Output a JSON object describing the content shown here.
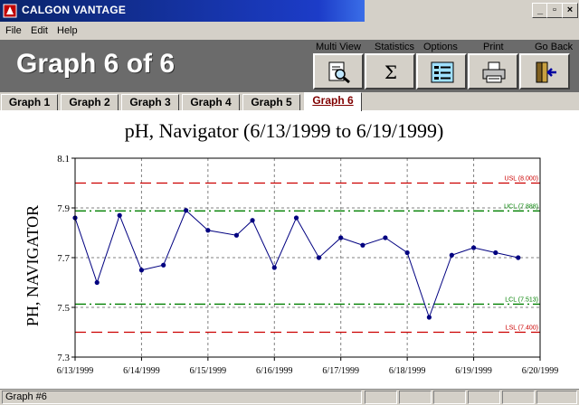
{
  "window": {
    "title": "CALGON VANTAGE"
  },
  "menu": {
    "items": [
      "File",
      "Edit",
      "Help"
    ]
  },
  "toolbar": {
    "graph_title": "Graph 6 of 6",
    "buttons": [
      {
        "label": "Multi View",
        "icon": "magnifier-document-icon"
      },
      {
        "label": "Statistics",
        "icon": "sigma-icon"
      },
      {
        "label": "Options",
        "icon": "list-options-icon"
      },
      {
        "label": "Print",
        "icon": "printer-icon"
      },
      {
        "label": "Go Back",
        "icon": "exit-door-icon"
      }
    ]
  },
  "tabs": {
    "items": [
      "Graph 1",
      "Graph 2",
      "Graph 3",
      "Graph 4",
      "Graph 5",
      "Graph 6"
    ],
    "active_index": 5
  },
  "status": {
    "text": "Graph #6"
  },
  "chart_data": {
    "type": "line",
    "title": "pH, Navigator (6/13/1999 to 6/19/1999)",
    "ylabel": "PH, NAVIGATOR",
    "xlabel": "",
    "ylim": [
      7.3,
      8.1
    ],
    "y_ticks": [
      "7.3",
      "7.5",
      "7.7",
      "7.9",
      "8.1"
    ],
    "x_ticks": [
      "6/13/1999",
      "6/14/1999",
      "6/15/1999",
      "6/16/1999",
      "6/17/1999",
      "6/18/1999",
      "6/19/1999",
      "6/20/1999"
    ],
    "xlim_days": [
      0,
      7
    ],
    "grid": true,
    "series": [
      {
        "x": [
          0,
          0.33,
          0.67,
          1.0,
          1.33,
          1.67,
          2.0,
          2.43,
          2.67,
          3.0,
          3.33,
          3.67,
          4.0,
          4.33,
          4.67,
          5.0,
          5.33,
          5.67,
          6.0,
          6.33,
          6.67
        ],
        "values": [
          7.86,
          7.6,
          7.87,
          7.65,
          7.67,
          7.89,
          7.81,
          7.79,
          7.85,
          7.66,
          7.86,
          7.7,
          7.78,
          7.75,
          7.78,
          7.72,
          7.46,
          7.71,
          7.74,
          7.72,
          7.7
        ],
        "color": "#000080"
      }
    ],
    "control_lines": [
      {
        "label": "USL (8.000)",
        "value": 8.0,
        "color": "#cc0000",
        "style": "dash"
      },
      {
        "label": "UCL (7.888)",
        "value": 7.888,
        "color": "#008000",
        "style": "dashdot"
      },
      {
        "label": "LCL (7.513)",
        "value": 7.513,
        "color": "#008000",
        "style": "dashdot"
      },
      {
        "label": "LSL (7.400)",
        "value": 7.4,
        "color": "#cc0000",
        "style": "dash"
      }
    ]
  }
}
